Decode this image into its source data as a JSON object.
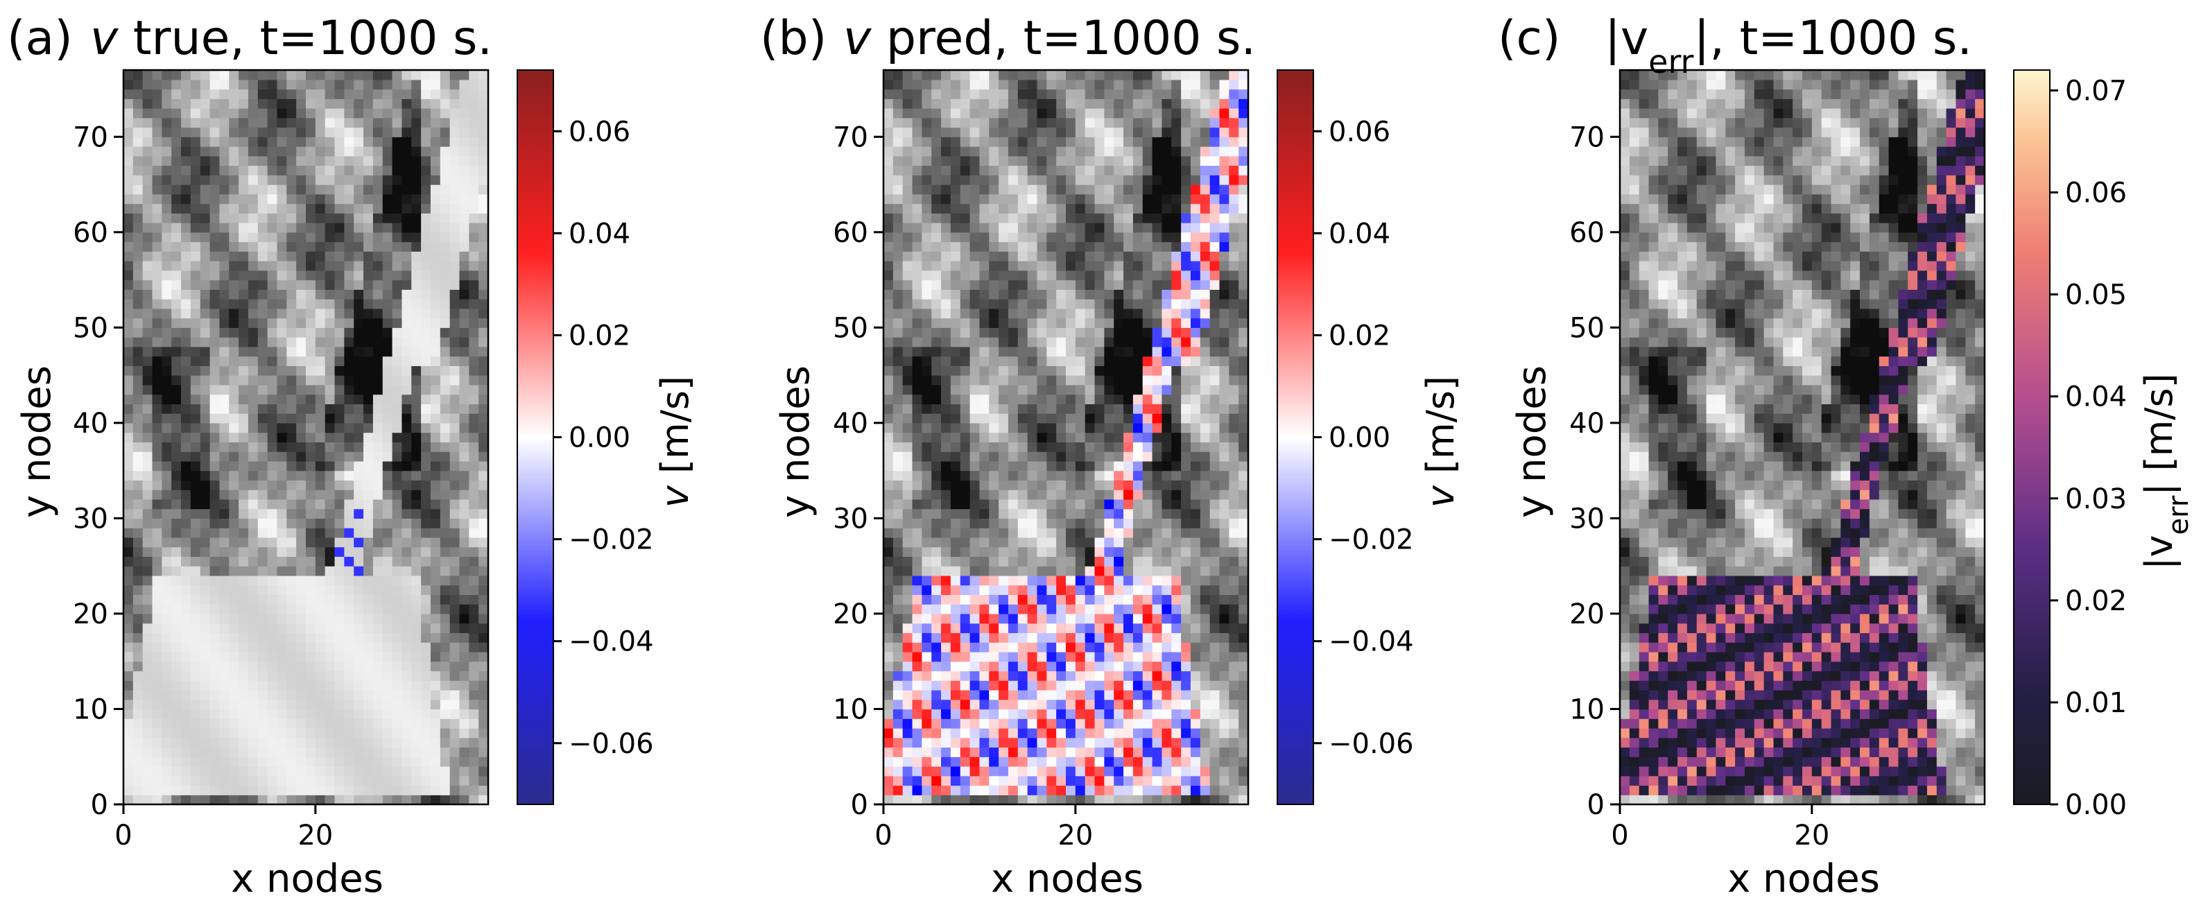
{
  "chart_data": [
    {
      "type": "heatmap",
      "panel": "(a)",
      "title_var": "v",
      "title_rest": " true, t=1000 s.",
      "xlabel": "x nodes",
      "ylabel": "y nodes",
      "xticks": [
        "0",
        "20"
      ],
      "yticks": [
        "0",
        "10",
        "20",
        "30",
        "40",
        "50",
        "60",
        "70"
      ],
      "xlim": [
        0,
        38
      ],
      "ylim": [
        0,
        77
      ],
      "colorbar": {
        "label_var": "v",
        "label_unit": " [m/s]",
        "colormap": "seismic",
        "range": [
          -0.072,
          0.072
        ],
        "ticks": [
          "0.06",
          "0.04",
          "0.02",
          "0.00",
          "−0.02",
          "−0.04",
          "−0.06"
        ],
        "tick_values": [
          0.06,
          0.04,
          0.02,
          0.0,
          -0.02,
          -0.04,
          -0.06
        ]
      }
    },
    {
      "type": "heatmap",
      "panel": "(b)",
      "title_var": "v",
      "title_rest": " pred, t=1000 s.",
      "xlabel": "x nodes",
      "ylabel": "y nodes",
      "xticks": [
        "0",
        "20"
      ],
      "yticks": [
        "0",
        "10",
        "20",
        "30",
        "40",
        "50",
        "60",
        "70"
      ],
      "xlim": [
        0,
        38
      ],
      "ylim": [
        0,
        77
      ],
      "colorbar": {
        "label_var": "v",
        "label_unit": " [m/s]",
        "colormap": "seismic",
        "range": [
          -0.072,
          0.072
        ],
        "ticks": [
          "0.06",
          "0.04",
          "0.02",
          "0.00",
          "−0.02",
          "−0.04",
          "−0.06"
        ],
        "tick_values": [
          0.06,
          0.04,
          0.02,
          0.0,
          -0.02,
          -0.04,
          -0.06
        ]
      }
    },
    {
      "type": "heatmap",
      "panel": "(c)",
      "title_var": "|v",
      "title_sub": "err",
      "title_rest": "|, t=1000 s.",
      "xlabel": "x nodes",
      "ylabel": "y nodes",
      "xticks": [
        "0",
        "20"
      ],
      "yticks": [
        "0",
        "10",
        "20",
        "30",
        "40",
        "50",
        "60",
        "70"
      ],
      "xlim": [
        0,
        38
      ],
      "ylim": [
        0,
        77
      ],
      "colorbar": {
        "label_var": "|v",
        "label_sub": "err",
        "label_unit": "| [m/s]",
        "colormap": "magma",
        "range": [
          0,
          0.072
        ],
        "ticks": [
          "0.07",
          "0.06",
          "0.05",
          "0.04",
          "0.03",
          "0.02",
          "0.01",
          "0.00"
        ],
        "tick_values": [
          0.07,
          0.06,
          0.05,
          0.04,
          0.03,
          0.02,
          0.01,
          0.0
        ]
      }
    }
  ]
}
